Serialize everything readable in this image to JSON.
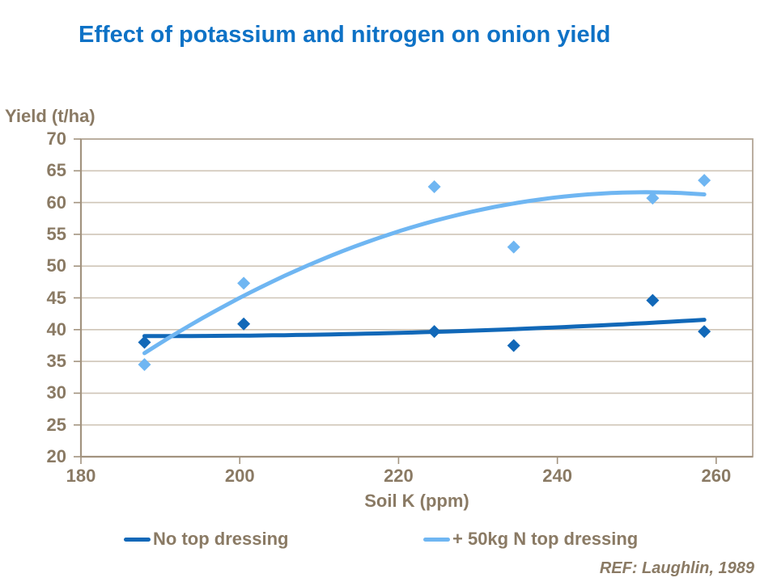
{
  "footer": {
    "ref": "REF: Laughlin, 1989"
  },
  "colors": {
    "title_text": "#0e72c6",
    "axis_text": "#8a7a64",
    "frame": "#b3a695",
    "axis_line": "#a2937f",
    "gridline": "#cfc5b7",
    "series_dark": "#1168b8",
    "series_light": "#6fb6f2",
    "background": "#ffffff"
  },
  "chart_data": {
    "type": "scatter",
    "title": "Effect of potassium and nitrogen on onion yield",
    "xlabel": "Soil K (ppm)",
    "ylabel": "Yield (t/ha)",
    "xlim": [
      180,
      264.6
    ],
    "ylim": [
      20,
      70
    ],
    "x_ticks": [
      180,
      200,
      220,
      240,
      260
    ],
    "y_ticks": [
      20,
      25,
      30,
      35,
      40,
      45,
      50,
      55,
      60,
      65,
      70
    ],
    "grid": "horizontal-only",
    "legend_position": "bottom",
    "marker": "diamond",
    "series": [
      {
        "name": "No top dressing",
        "color": "#1168b8",
        "points": [
          {
            "x": 188,
            "y": 38.0
          },
          {
            "x": 200.5,
            "y": 40.9
          },
          {
            "x": 224.5,
            "y": 39.7
          },
          {
            "x": 234.5,
            "y": 37.5
          },
          {
            "x": 252,
            "y": 44.6
          },
          {
            "x": 258.5,
            "y": 39.7
          }
        ],
        "trendline": {
          "type": "poly2",
          "center": 230,
          "c0": 39.87,
          "c1": 0.0436,
          "c2": 0.00054,
          "k_range": [
            188,
            258.5
          ]
        }
      },
      {
        "name": "+ 50kg N top dressing",
        "color": "#6fb6f2",
        "points": [
          {
            "x": 188,
            "y": 34.5
          },
          {
            "x": 200.5,
            "y": 47.3
          },
          {
            "x": 224.5,
            "y": 62.5
          },
          {
            "x": 234.5,
            "y": 53.0
          },
          {
            "x": 252,
            "y": 60.7
          },
          {
            "x": 258.5,
            "y": 63.5
          }
        ],
        "trendline": {
          "type": "poly2",
          "center": 230,
          "c0": 58.78,
          "c1": 0.2687,
          "c2": -0.00635,
          "k_range": [
            188,
            258.5
          ]
        }
      }
    ]
  }
}
